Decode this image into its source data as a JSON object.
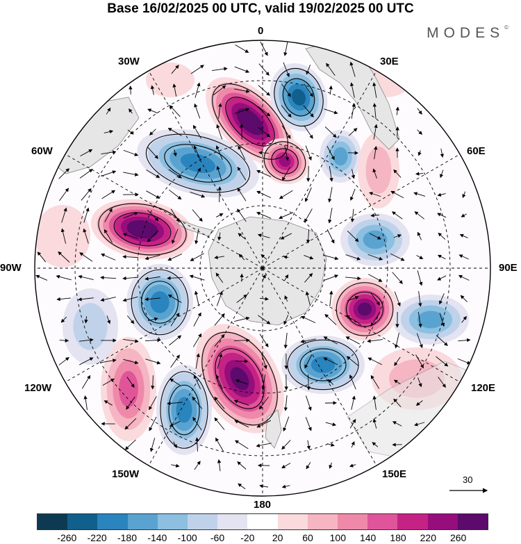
{
  "title": "Base 16/02/2025 00 UTC, valid 19/02/2025 00 UTC",
  "brand": {
    "name": "MODES",
    "mark": "©"
  },
  "map": {
    "projection": "south polar stereographic",
    "longitude_labels": {
      "top": "0",
      "bottom": "180",
      "left": "90W",
      "right": "90E",
      "upper_left_1": "30W",
      "upper_left_2": "60W",
      "upper_right_1": "30E",
      "upper_right_2": "60E",
      "lower_left_1": "120W",
      "lower_left_2": "150W",
      "lower_right_1": "120E",
      "lower_right_2": "150E"
    },
    "field": "anomaly shading with wind vectors",
    "reference_vector": "30",
    "colors": {
      "land": "#e6e6e6",
      "coast": "#888888"
    }
  },
  "colorbar": {
    "colors": [
      "#0d3a52",
      "#115f8c",
      "#2a84bd",
      "#5aa3d0",
      "#8cbfe0",
      "#bfd2ea",
      "#e3e3f1",
      "#ffffff",
      "#fadadd",
      "#f5b5c3",
      "#ef89aa",
      "#e0559a",
      "#c42285",
      "#960d7c",
      "#5c0a6b"
    ],
    "ticks": [
      "-260",
      "-220",
      "-180",
      "-140",
      "-100",
      "-60",
      "-20",
      "20",
      "60",
      "100",
      "140",
      "180",
      "220",
      "260"
    ]
  }
}
